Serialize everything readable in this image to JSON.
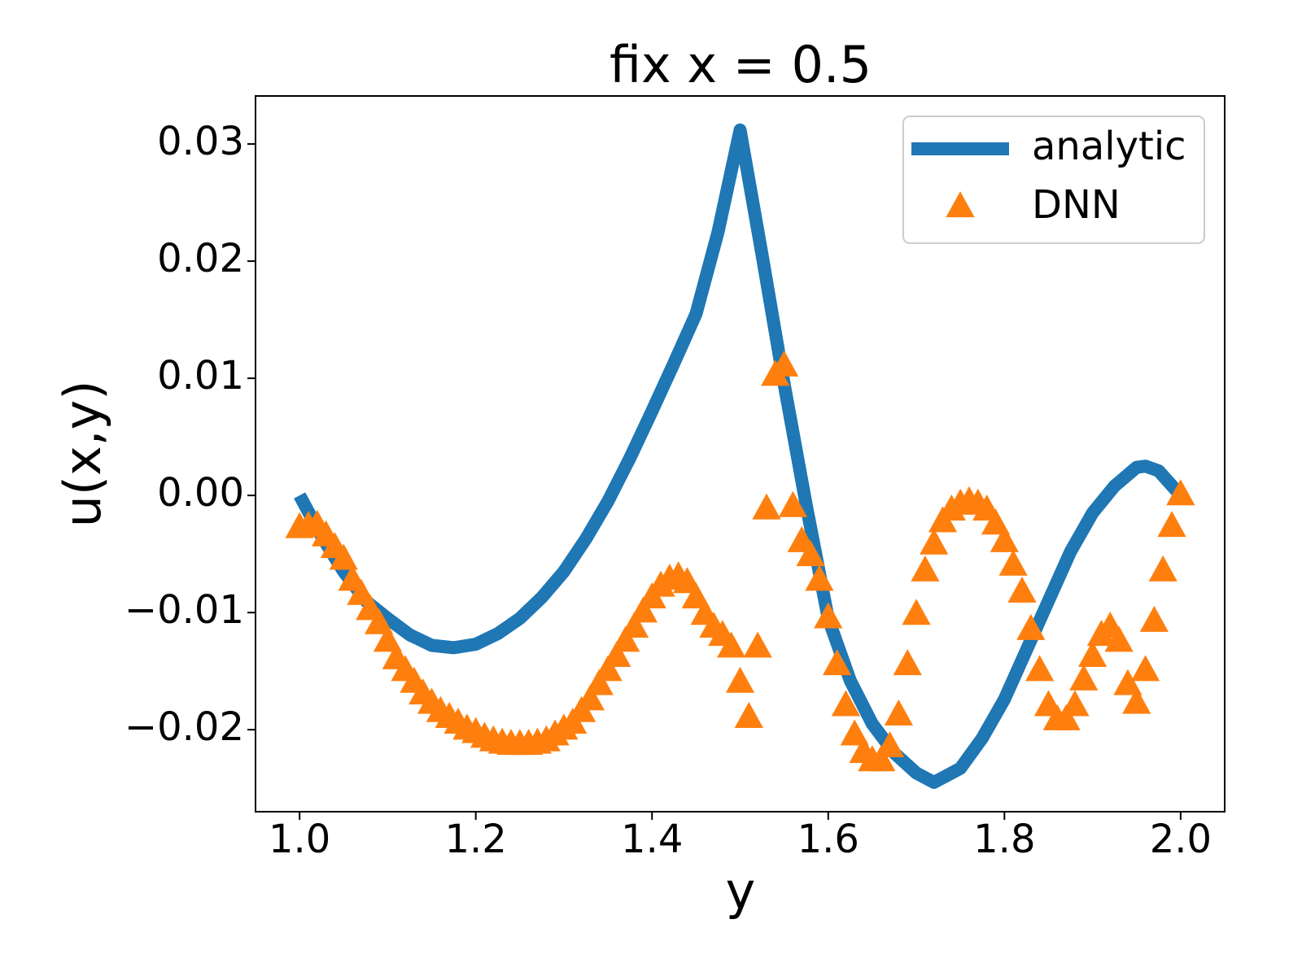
{
  "chart_data": {
    "type": "line-scatter",
    "title": "fix x = 0.5",
    "xlabel": "y",
    "ylabel": "u(x,y)",
    "xlim": [
      0.95,
      2.05
    ],
    "ylim": [
      -0.027,
      0.0341
    ],
    "xticks": [
      {
        "value": 1,
        "label": "1.0"
      },
      1.2,
      1.4,
      1.6,
      1.8,
      {
        "value": 2,
        "label": "2.0"
      }
    ],
    "yticks": [
      {
        "value": -0.02,
        "label": "−0.02"
      },
      {
        "value": -0.01,
        "label": "−0.01"
      },
      {
        "value": 0,
        "label": "0.00"
      },
      0.01,
      0.02,
      0.03
    ],
    "legend": "upper right",
    "series": [
      {
        "name": "analytic",
        "kind": "line",
        "color": "#1f77b4",
        "x": [
          1.0,
          1.025,
          1.05,
          1.075,
          1.1,
          1.125,
          1.15,
          1.175,
          1.2,
          1.225,
          1.25,
          1.275,
          1.3,
          1.325,
          1.35,
          1.375,
          1.4,
          1.425,
          1.45,
          1.475,
          1.5,
          1.525,
          1.55,
          1.575,
          1.6,
          1.625,
          1.65,
          1.675,
          1.7,
          1.72,
          1.75,
          1.775,
          1.8,
          1.825,
          1.85,
          1.875,
          1.9,
          1.925,
          1.95,
          1.96,
          1.975,
          2.0
        ],
        "values": [
          0.0,
          -0.0035,
          -0.0065,
          -0.009,
          -0.0105,
          -0.0119,
          -0.0128,
          -0.013,
          -0.0127,
          -0.0118,
          -0.0105,
          -0.0087,
          -0.0065,
          -0.0037,
          -0.0005,
          0.0032,
          0.0072,
          0.0113,
          0.0155,
          0.0225,
          0.0312,
          0.0205,
          0.0095,
          -0.0008,
          -0.0105,
          -0.0158,
          -0.0195,
          -0.022,
          -0.0237,
          -0.0245,
          -0.0233,
          -0.0207,
          -0.0174,
          -0.0132,
          -0.009,
          -0.0048,
          -0.0015,
          0.0008,
          0.0024,
          0.0025,
          0.0021,
          0.0
        ]
      },
      {
        "name": "DNN",
        "kind": "scatter",
        "color": "#ff7f0e",
        "x": [
          1.0,
          1.01,
          1.02,
          1.03,
          1.04,
          1.05,
          1.06,
          1.07,
          1.08,
          1.09,
          1.1,
          1.11,
          1.12,
          1.13,
          1.14,
          1.15,
          1.16,
          1.17,
          1.18,
          1.19,
          1.2,
          1.21,
          1.22,
          1.23,
          1.24,
          1.25,
          1.26,
          1.27,
          1.28,
          1.29,
          1.3,
          1.31,
          1.32,
          1.33,
          1.34,
          1.35,
          1.36,
          1.37,
          1.38,
          1.39,
          1.4,
          1.41,
          1.42,
          1.43,
          1.44,
          1.45,
          1.46,
          1.47,
          1.48,
          1.49,
          1.5,
          1.51,
          1.52,
          1.53,
          1.54,
          1.55,
          1.56,
          1.57,
          1.58,
          1.59,
          1.6,
          1.61,
          1.62,
          1.63,
          1.64,
          1.65,
          1.66,
          1.67,
          1.68,
          1.69,
          1.7,
          1.71,
          1.72,
          1.73,
          1.74,
          1.75,
          1.76,
          1.77,
          1.78,
          1.79,
          1.8,
          1.81,
          1.82,
          1.83,
          1.84,
          1.85,
          1.86,
          1.87,
          1.88,
          1.89,
          1.9,
          1.91,
          1.92,
          1.93,
          1.94,
          1.95,
          1.96,
          1.97,
          1.98,
          1.99,
          2.0
        ],
        "values": [
          -0.0028,
          -0.0027,
          -0.0026,
          -0.0035,
          -0.0045,
          -0.0055,
          -0.0073,
          -0.0085,
          -0.0098,
          -0.011,
          -0.0125,
          -0.014,
          -0.015,
          -0.016,
          -0.017,
          -0.0178,
          -0.0185,
          -0.019,
          -0.0195,
          -0.02,
          -0.0203,
          -0.0207,
          -0.021,
          -0.0212,
          -0.0213,
          -0.0213,
          -0.0213,
          -0.0212,
          -0.021,
          -0.0205,
          -0.02,
          -0.0195,
          -0.0185,
          -0.0175,
          -0.0162,
          -0.015,
          -0.0138,
          -0.0125,
          -0.0113,
          -0.01,
          -0.0088,
          -0.0078,
          -0.0072,
          -0.007,
          -0.0075,
          -0.0088,
          -0.0102,
          -0.0113,
          -0.012,
          -0.013,
          -0.016,
          -0.019,
          -0.013,
          -0.0012,
          0.0102,
          0.011,
          -0.001,
          -0.004,
          -0.0052,
          -0.0073,
          -0.0105,
          -0.0145,
          -0.018,
          -0.0205,
          -0.022,
          -0.0227,
          -0.0227,
          -0.0215,
          -0.0188,
          -0.0145,
          -0.0102,
          -0.0065,
          -0.0042,
          -0.0023,
          -0.0013,
          -0.0008,
          -0.0006,
          -0.0008,
          -0.0013,
          -0.0025,
          -0.004,
          -0.006,
          -0.0083,
          -0.0115,
          -0.015,
          -0.018,
          -0.0192,
          -0.0192,
          -0.018,
          -0.0158,
          -0.0138,
          -0.012,
          -0.0113,
          -0.0125,
          -0.0162,
          -0.0178,
          -0.015,
          -0.0108,
          -0.0065,
          -0.0027,
          0.0
        ]
      }
    ]
  }
}
